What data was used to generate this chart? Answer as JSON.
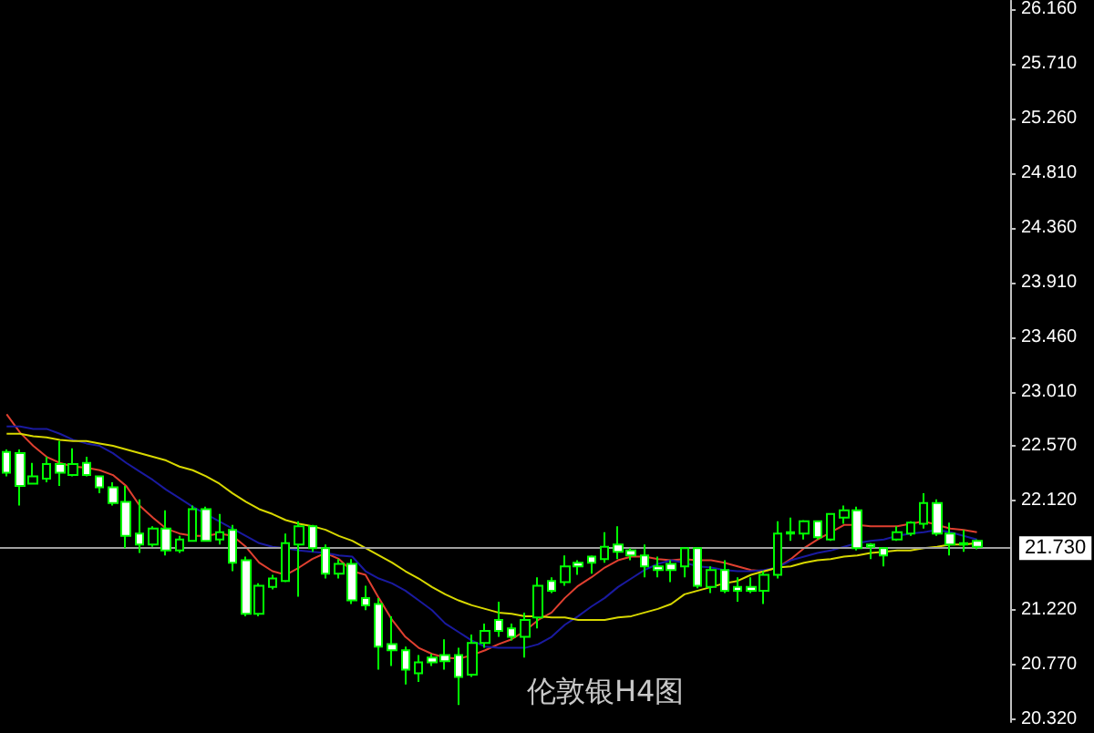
{
  "chart_data": {
    "type": "candlestick",
    "title": "伦敦银H4图",
    "categories": [
      null,
      null,
      null,
      null,
      null,
      null,
      null,
      null,
      null,
      null,
      null,
      null,
      null,
      null,
      null,
      null,
      null,
      null,
      null,
      null,
      null,
      null,
      null,
      null,
      null,
      null,
      null,
      null,
      null,
      null,
      null,
      null,
      null,
      null,
      null,
      null,
      null,
      null,
      null,
      null,
      null,
      null,
      null,
      null,
      null,
      null,
      null,
      null,
      null,
      null,
      null,
      null,
      null,
      null,
      null,
      null,
      null,
      null,
      null,
      null,
      null,
      null,
      null,
      null,
      null,
      null,
      null,
      null,
      null,
      null,
      null,
      null,
      null,
      null
    ],
    "ylim": [
      20.3,
      26.23
    ],
    "yticks": [
      {
        "value": 26.16,
        "label": "26.160"
      },
      {
        "value": 25.71,
        "label": "25.710"
      },
      {
        "value": 25.26,
        "label": "25.260"
      },
      {
        "value": 24.81,
        "label": "24.810"
      },
      {
        "value": 24.36,
        "label": "24.360"
      },
      {
        "value": 23.91,
        "label": "23.910"
      },
      {
        "value": 23.46,
        "label": "23.460"
      },
      {
        "value": 23.01,
        "label": "23.010"
      },
      {
        "value": 22.57,
        "label": "22.570"
      },
      {
        "value": 22.12,
        "label": "22.120"
      },
      {
        "value": 21.22,
        "label": "21.220"
      },
      {
        "value": 20.77,
        "label": "20.770"
      },
      {
        "value": 20.32,
        "label": "20.320"
      }
    ],
    "tick_labels": "y",
    "grid": false,
    "ref_lines": [
      {
        "axis": "y",
        "value": 21.73,
        "label": "21.730",
        "color": "#a0a0a0"
      }
    ],
    "series": [
      {
        "color": "#00ff00",
        "ohlc": [
          [
            22.52,
            22.54,
            22.32,
            22.35
          ],
          [
            22.51,
            22.54,
            22.08,
            22.24
          ],
          [
            22.26,
            22.43,
            22.26,
            22.32
          ],
          [
            22.3,
            22.48,
            22.27,
            22.42
          ],
          [
            22.42,
            22.61,
            22.24,
            22.35
          ],
          [
            22.33,
            22.55,
            22.32,
            22.42
          ],
          [
            22.43,
            22.48,
            22.32,
            22.33
          ],
          [
            22.32,
            22.32,
            22.18,
            22.23
          ],
          [
            22.23,
            22.27,
            22.08,
            22.1
          ],
          [
            22.11,
            22.24,
            21.73,
            21.83
          ],
          [
            21.85,
            22.13,
            21.69,
            21.76
          ],
          [
            21.76,
            21.91,
            21.74,
            21.89
          ],
          [
            21.89,
            22.04,
            21.67,
            21.71
          ],
          [
            21.71,
            21.83,
            21.69,
            21.8
          ],
          [
            21.79,
            22.08,
            21.79,
            22.05
          ],
          [
            22.05,
            22.07,
            21.79,
            21.79
          ],
          [
            21.8,
            22.01,
            21.76,
            21.86
          ],
          [
            21.88,
            21.92,
            21.54,
            21.61
          ],
          [
            21.63,
            21.66,
            21.17,
            21.19
          ],
          [
            21.19,
            21.44,
            21.17,
            21.42
          ],
          [
            21.41,
            21.51,
            21.39,
            21.48
          ],
          [
            21.46,
            21.85,
            21.45,
            21.77
          ],
          [
            21.76,
            21.95,
            21.33,
            21.91
          ],
          [
            21.91,
            21.92,
            21.7,
            21.73
          ],
          [
            21.73,
            21.76,
            21.48,
            21.52
          ],
          [
            21.52,
            21.64,
            21.48,
            21.6
          ],
          [
            21.6,
            21.64,
            21.27,
            21.3
          ],
          [
            21.32,
            21.42,
            21.22,
            21.26
          ],
          [
            21.27,
            21.32,
            20.73,
            20.92
          ],
          [
            20.94,
            21.17,
            20.76,
            20.89
          ],
          [
            20.89,
            20.92,
            20.61,
            20.73
          ],
          [
            20.7,
            20.85,
            20.63,
            20.79
          ],
          [
            20.83,
            20.86,
            20.76,
            20.79
          ],
          [
            20.85,
            20.98,
            20.73,
            20.8
          ],
          [
            20.85,
            20.91,
            20.44,
            20.67
          ],
          [
            20.69,
            21.02,
            20.67,
            20.95
          ],
          [
            20.95,
            21.11,
            20.91,
            21.05
          ],
          [
            21.14,
            21.29,
            21.0,
            21.05
          ],
          [
            21.07,
            21.11,
            20.97,
            21.0
          ],
          [
            21.0,
            21.2,
            20.83,
            21.14
          ],
          [
            21.16,
            21.49,
            21.07,
            21.42
          ],
          [
            21.46,
            21.49,
            21.36,
            21.38
          ],
          [
            21.45,
            21.67,
            21.42,
            21.58
          ],
          [
            21.61,
            21.63,
            21.51,
            21.58
          ],
          [
            21.66,
            21.67,
            21.52,
            21.61
          ],
          [
            21.64,
            21.86,
            21.61,
            21.74
          ],
          [
            21.76,
            21.91,
            21.64,
            21.7
          ],
          [
            21.71,
            21.73,
            21.63,
            21.67
          ],
          [
            21.67,
            21.76,
            21.49,
            21.58
          ],
          [
            21.58,
            21.66,
            21.49,
            21.55
          ],
          [
            21.6,
            21.63,
            21.45,
            21.55
          ],
          [
            21.58,
            21.73,
            21.49,
            21.73
          ],
          [
            21.73,
            21.73,
            21.4,
            21.42
          ],
          [
            21.41,
            21.58,
            21.36,
            21.55
          ],
          [
            21.55,
            21.63,
            21.36,
            21.38
          ],
          [
            21.41,
            21.49,
            21.29,
            21.38
          ],
          [
            21.41,
            21.49,
            21.36,
            21.38
          ],
          [
            21.38,
            21.54,
            21.27,
            21.51
          ],
          [
            21.51,
            21.95,
            21.48,
            21.85
          ],
          [
            21.85,
            21.98,
            21.79,
            21.86
          ],
          [
            21.85,
            21.96,
            21.8,
            21.95
          ],
          [
            21.95,
            21.95,
            21.8,
            21.82
          ],
          [
            21.8,
            22.01,
            21.79,
            22.01
          ],
          [
            21.98,
            22.08,
            21.93,
            22.04
          ],
          [
            22.04,
            22.07,
            21.71,
            21.73
          ],
          [
            21.76,
            21.77,
            21.64,
            21.74
          ],
          [
            21.73,
            21.73,
            21.58,
            21.67
          ],
          [
            21.8,
            21.91,
            21.79,
            21.86
          ],
          [
            21.85,
            21.95,
            21.83,
            21.94
          ],
          [
            21.93,
            22.18,
            21.89,
            22.1
          ],
          [
            22.1,
            22.13,
            21.83,
            21.85
          ],
          [
            21.85,
            21.94,
            21.67,
            21.76
          ],
          [
            21.76,
            21.88,
            21.7,
            21.77
          ],
          [
            21.79,
            21.8,
            21.72,
            21.74
          ]
        ]
      },
      {
        "type": "line",
        "color": "#e04030",
        "values": [
          22.83,
          22.68,
          22.57,
          22.48,
          22.43,
          22.4,
          22.39,
          22.37,
          22.33,
          22.24,
          22.08,
          21.98,
          21.89,
          21.85,
          21.83,
          21.83,
          21.85,
          21.83,
          21.74,
          21.61,
          21.54,
          21.51,
          21.57,
          21.64,
          21.69,
          21.64,
          21.54,
          21.51,
          21.32,
          21.14,
          21.0,
          20.91,
          20.86,
          20.83,
          20.82,
          20.85,
          20.89,
          20.94,
          20.98,
          21.05,
          21.14,
          21.2,
          21.32,
          21.42,
          21.49,
          21.57,
          21.63,
          21.66,
          21.66,
          21.64,
          21.63,
          21.64,
          21.63,
          21.63,
          21.61,
          21.58,
          21.55,
          21.54,
          21.57,
          21.64,
          21.73,
          21.8,
          21.86,
          21.92,
          21.92,
          21.91,
          21.91,
          21.91,
          21.93,
          21.95,
          21.92,
          21.89,
          21.88,
          21.86
        ]
      },
      {
        "type": "line",
        "color": "#1a1aa0",
        "values": [
          22.73,
          22.73,
          22.71,
          22.71,
          22.67,
          22.62,
          22.59,
          22.57,
          22.51,
          22.43,
          22.36,
          22.29,
          22.21,
          22.14,
          22.07,
          22.01,
          21.95,
          21.89,
          21.83,
          21.77,
          21.74,
          21.73,
          21.71,
          21.7,
          21.69,
          21.67,
          21.66,
          21.54,
          21.48,
          21.44,
          21.38,
          21.3,
          21.22,
          21.11,
          21.04,
          20.97,
          20.92,
          20.91,
          20.91,
          20.91,
          20.94,
          21.0,
          21.1,
          21.17,
          21.25,
          21.32,
          21.41,
          21.48,
          21.55,
          21.6,
          21.63,
          21.61,
          21.58,
          21.57,
          21.55,
          21.54,
          21.54,
          21.55,
          21.57,
          21.63,
          21.66,
          21.69,
          21.71,
          21.74,
          21.77,
          21.79,
          21.8,
          21.83,
          21.85,
          21.86,
          21.88,
          21.86,
          21.83,
          21.8
        ]
      },
      {
        "type": "line",
        "color": "#d8d800",
        "values": [
          22.67,
          22.67,
          22.65,
          22.64,
          22.62,
          22.61,
          22.61,
          22.59,
          22.57,
          22.54,
          22.51,
          22.48,
          22.45,
          22.4,
          22.37,
          22.32,
          22.26,
          22.18,
          22.11,
          22.05,
          22.01,
          21.96,
          21.93,
          21.91,
          21.88,
          21.83,
          21.79,
          21.73,
          21.67,
          21.61,
          21.54,
          21.48,
          21.41,
          21.35,
          21.3,
          21.26,
          21.23,
          21.2,
          21.19,
          21.17,
          21.17,
          21.16,
          21.16,
          21.14,
          21.14,
          21.14,
          21.16,
          21.17,
          21.2,
          21.23,
          21.27,
          21.35,
          21.38,
          21.41,
          21.44,
          21.46,
          21.51,
          21.54,
          21.57,
          21.58,
          21.61,
          21.63,
          21.64,
          21.66,
          21.67,
          21.69,
          21.7,
          21.71,
          21.71,
          21.73,
          21.74,
          21.76,
          21.76,
          21.77
        ]
      }
    ]
  }
}
